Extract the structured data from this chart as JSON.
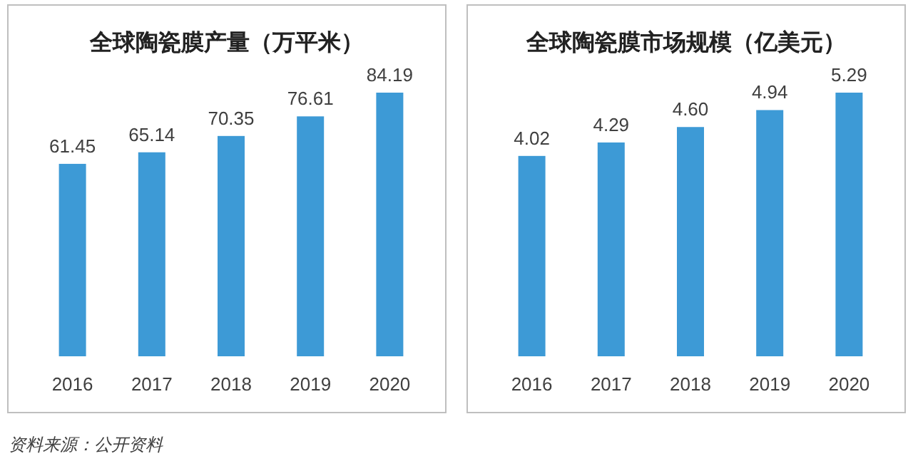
{
  "chart_data": [
    {
      "type": "bar",
      "title": "全球陶瓷膜产量（万平米）",
      "categories": [
        "2016",
        "2017",
        "2018",
        "2019",
        "2020"
      ],
      "values": [
        61.45,
        65.14,
        70.35,
        76.61,
        84.19
      ],
      "color": "#3d9ad6",
      "data_labels": true,
      "annotations": [
        "资料来源：公开资料"
      ]
    },
    {
      "type": "bar",
      "title": "全球陶瓷膜市场规模（亿美元）",
      "categories": [
        "2016",
        "2017",
        "2018",
        "2019",
        "2020"
      ],
      "values": [
        4.02,
        4.29,
        4.6,
        4.94,
        5.29
      ],
      "value_labels": [
        "4.02",
        "4.29",
        "4.60",
        "4.94",
        "5.29"
      ],
      "color": "#3d9ad6"
    }
  ]
}
